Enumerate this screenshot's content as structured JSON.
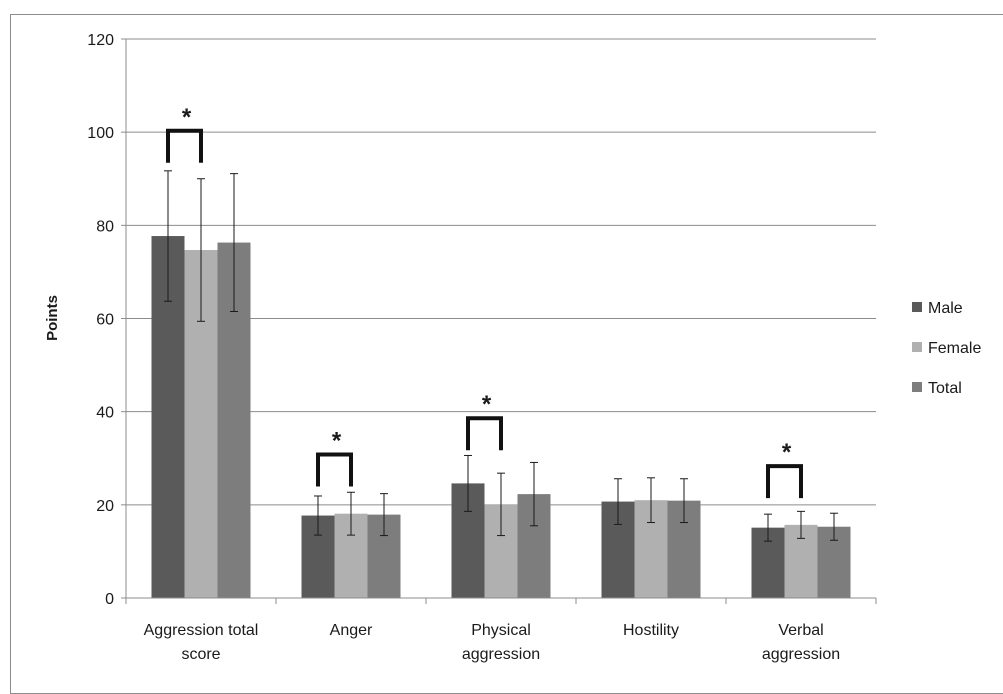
{
  "chart_data": {
    "type": "bar",
    "title": "",
    "xlabel": "",
    "ylabel": "Points",
    "ylim": [
      0,
      120
    ],
    "yticks": [
      0,
      20,
      40,
      60,
      80,
      100,
      120
    ],
    "grid": true,
    "legend_position": "right",
    "categories": [
      [
        "Aggression total",
        "score"
      ],
      [
        "Anger"
      ],
      [
        "Physical",
        "aggression"
      ],
      [
        "Hostility"
      ],
      [
        "Verbal",
        "aggression"
      ]
    ],
    "series": [
      {
        "name": "Male",
        "color": "#5a5a5a",
        "values": [
          77.7,
          17.7,
          24.6,
          20.7,
          15.1
        ],
        "errors": [
          14.0,
          4.2,
          6.0,
          4.9,
          2.9
        ]
      },
      {
        "name": "Female",
        "color": "#b0b0b0",
        "values": [
          74.7,
          18.1,
          20.1,
          21.0,
          15.7
        ],
        "errors": [
          15.3,
          4.6,
          6.7,
          4.8,
          2.9
        ]
      },
      {
        "name": "Total",
        "color": "#7d7d7d",
        "values": [
          76.3,
          17.9,
          22.3,
          20.9,
          15.3
        ],
        "errors": [
          14.8,
          4.5,
          6.8,
          4.7,
          2.9
        ]
      }
    ],
    "significance": [
      {
        "category_index": 0,
        "label": "*",
        "top_value": 100.3
      },
      {
        "category_index": 1,
        "label": "*",
        "top_value": 30.8
      },
      {
        "category_index": 2,
        "label": "*",
        "top_value": 38.6
      },
      {
        "category_index": 4,
        "label": "*",
        "top_value": 28.3
      }
    ]
  }
}
